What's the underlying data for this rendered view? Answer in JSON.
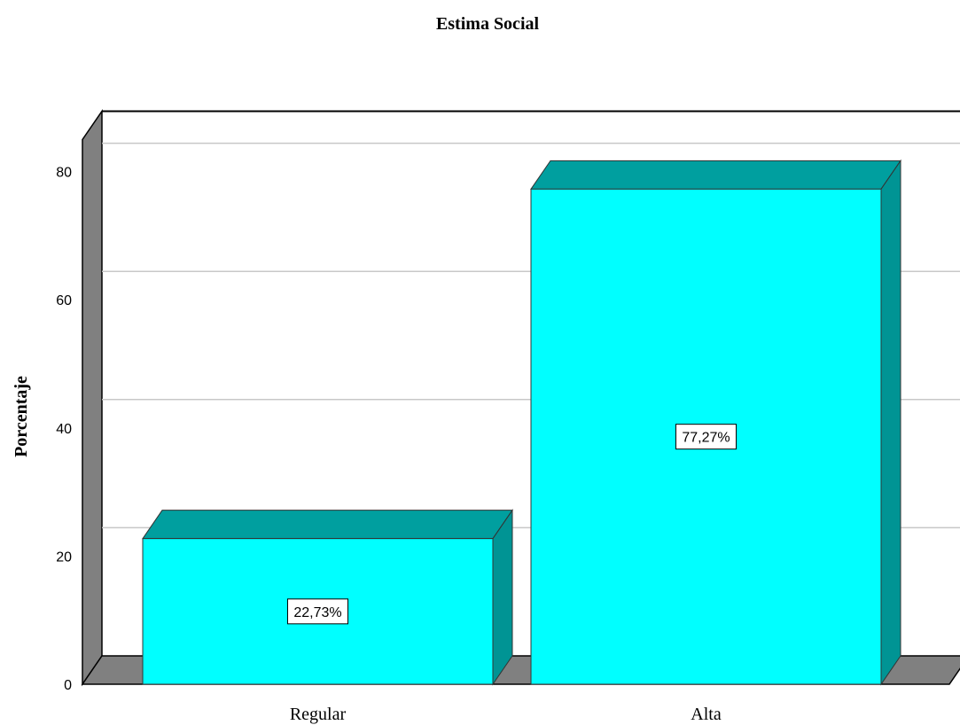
{
  "chart_data": {
    "type": "bar",
    "title": "Estima Social",
    "xlabel": "",
    "ylabel": "Porcentaje",
    "categories": [
      "Regular",
      "Alta"
    ],
    "values": [
      22.73,
      77.27
    ],
    "data_labels": [
      "22,73%",
      "77,27%"
    ],
    "yticks": [
      "0",
      "20",
      "40",
      "60",
      "80"
    ],
    "ylim": [
      0,
      85
    ],
    "grid": true,
    "legend": "none",
    "style": "3d",
    "colors": {
      "bar_front": "#00ffff",
      "bar_top": "#009f9f",
      "bar_side": "#009494",
      "wall": "#808080",
      "gridline": "#c8c8c8"
    }
  }
}
